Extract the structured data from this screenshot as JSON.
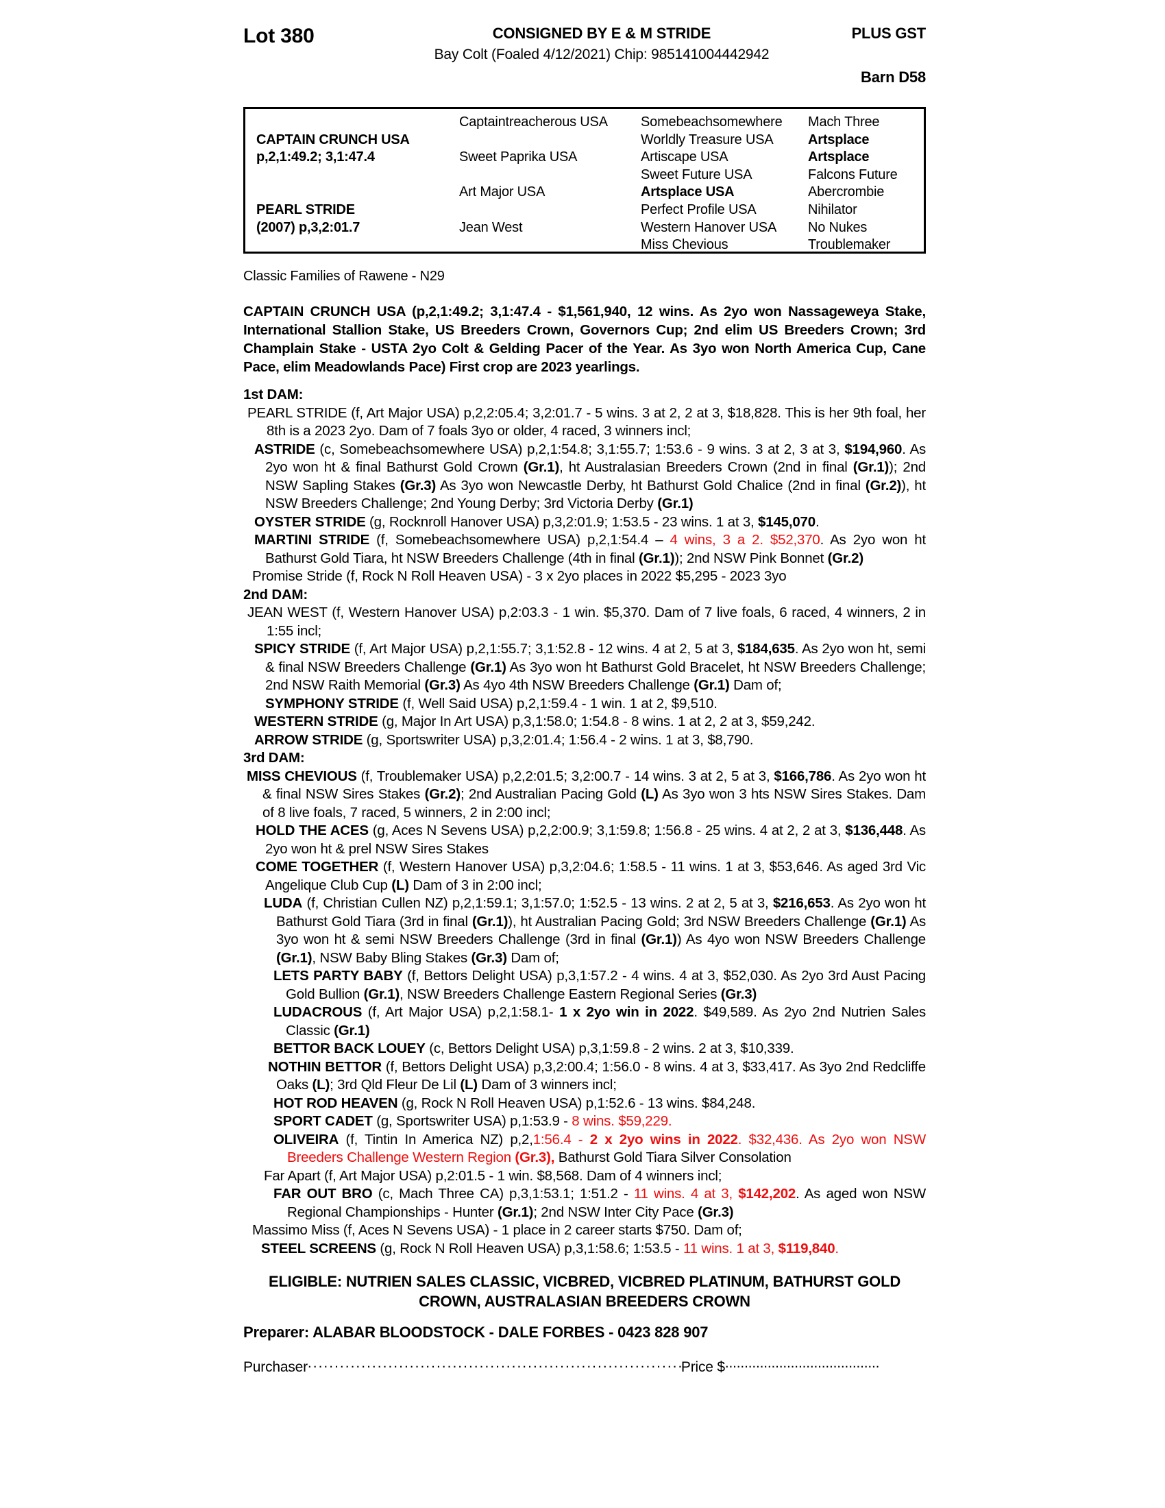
{
  "colors": {
    "red": "#ee0e0e",
    "text": "#000000",
    "background": "#ffffff"
  },
  "header": {
    "lot": "Lot 380",
    "consigned": "CONSIGNED BY E & M STRIDE",
    "plus_gst": "PLUS GST",
    "foal_info": "Bay Colt (Foaled 4/12/2021) Chip: 985141004442942",
    "barn": "Barn D58"
  },
  "pedigree_table": {
    "cells": [
      {
        "c": 1,
        "row": 2,
        "b": true,
        "t": "CAPTAIN CRUNCH USA"
      },
      {
        "c": 1,
        "row": 3,
        "b": true,
        "t": "p,2,1:49.2; 3,1:47.4"
      },
      {
        "c": 1,
        "row": 6,
        "b": true,
        "t": "PEARL STRIDE"
      },
      {
        "c": 1,
        "row": 7,
        "b": true,
        "t": "(2007) p,3,2:01.7"
      },
      {
        "c": 2,
        "row": 1,
        "b": false,
        "t": "Captaintreacherous USA"
      },
      {
        "c": 2,
        "row": 3,
        "b": false,
        "t": "Sweet Paprika USA"
      },
      {
        "c": 2,
        "row": 5,
        "b": false,
        "t": "Art Major USA"
      },
      {
        "c": 2,
        "row": 7,
        "b": false,
        "t": "Jean West"
      },
      {
        "c": 3,
        "row": 1,
        "b": false,
        "t": "Somebeachsomewhere"
      },
      {
        "c": 3,
        "row": 2,
        "b": false,
        "t": "Worldly Treasure USA"
      },
      {
        "c": 3,
        "row": 3,
        "b": false,
        "t": "Artiscape USA"
      },
      {
        "c": 3,
        "row": 4,
        "b": false,
        "t": "Sweet Future USA"
      },
      {
        "c": 3,
        "row": 5,
        "b": true,
        "t": "Artsplace USA"
      },
      {
        "c": 3,
        "row": 6,
        "b": false,
        "t": "Perfect Profile USA"
      },
      {
        "c": 3,
        "row": 7,
        "b": false,
        "t": "Western Hanover USA"
      },
      {
        "c": 3,
        "row": 8,
        "b": false,
        "t": "Miss Chevious"
      },
      {
        "c": 4,
        "row": 1,
        "b": false,
        "t": "Mach Three"
      },
      {
        "c": 4,
        "row": 2,
        "b": true,
        "t": "Artsplace"
      },
      {
        "c": 4,
        "row": 3,
        "b": true,
        "t": "Artsplace"
      },
      {
        "c": 4,
        "row": 4,
        "b": false,
        "t": "Falcons Future"
      },
      {
        "c": 4,
        "row": 5,
        "b": false,
        "t": "Abercrombie"
      },
      {
        "c": 4,
        "row": 6,
        "b": false,
        "t": "Nihilator"
      },
      {
        "c": 4,
        "row": 7,
        "b": false,
        "t": "No Nukes"
      },
      {
        "c": 4,
        "row": 8,
        "b": false,
        "t": "Troublemaker"
      }
    ]
  },
  "family_line": "Classic Families of Rawene - N29",
  "sire_paragraph": "CAPTAIN CRUNCH USA (p,2,1:49.2; 3,1:47.4 - $1,561,940, 12 wins. As 2yo won Nassageweya Stake, International Stallion Stake, US Breeders Crown, Governors Cup; 2nd elim US Breeders Crown; 3rd Champlain Stake - USTA 2yo Colt & Gelding Pacer of the Year. As 3yo won North America Cup, Cane Pace, elim Meadowlands Pace) First crop are 2023 yearlings.",
  "pedigree_entries": [
    {
      "h": "1st DAM:",
      "gap": true
    },
    {
      "first": 6,
      "cont": 34,
      "runs": [
        {
          "t": "PEARL STRIDE (f, Art Major USA) p,2,2:05.4; 3,2:01.7 - 5 wins. 3 at 2, 2 at 3, $18,828. This is her 9th foal, her 8th is a 2023 2yo. Dam of 7 foals 3yo or older, 4 raced, 3 winners incl;"
        }
      ]
    },
    {
      "first": 16,
      "cont": 32,
      "runs": [
        {
          "t": "ASTRIDE",
          "b": true
        },
        {
          "t": " (c, Somebeachsomewhere USA) p,2,1:54.8; 3,1:55.7; 1:53.6 - 9 wins. 3 at 2, 3 at 3, "
        },
        {
          "t": "$194,960",
          "b": true
        },
        {
          "t": ". As 2yo won ht & final Bathurst Gold Crown "
        },
        {
          "t": "(Gr.1)",
          "b": true
        },
        {
          "t": ", ht Australasian Breeders Crown (2nd in final "
        },
        {
          "t": "(Gr.1)",
          "b": true
        },
        {
          "t": "); 2nd NSW Sapling Stakes "
        },
        {
          "t": "(Gr.3)",
          "b": true
        },
        {
          "t": " As 3yo won Newcastle Derby, ht Bathurst Gold Chalice (2nd in final "
        },
        {
          "t": "(Gr.2)",
          "b": true
        },
        {
          "t": "), ht NSW Breeders Challenge; 2nd Young Derby; 3rd Victoria Derby "
        },
        {
          "t": "(Gr.1)",
          "b": true
        }
      ]
    },
    {
      "first": 16,
      "cont": 32,
      "runs": [
        {
          "t": "OYSTER STRIDE",
          "b": true
        },
        {
          "t": " (g, Rocknroll Hanover USA) p,3,2:01.9; 1:53.5 - 23 wins. 1 at 3, "
        },
        {
          "t": "$145,070",
          "b": true
        },
        {
          "t": "."
        }
      ]
    },
    {
      "first": 16,
      "cont": 32,
      "runs": [
        {
          "t": "MARTINI STRIDE",
          "b": true
        },
        {
          "t": " (f, Somebeachsomewhere USA) p,2,1:54.4 – "
        },
        {
          "t": "4 wins, 3 a 2. $52,370",
          "r": true
        },
        {
          "t": ". As 2yo won ht Bathurst Gold Tiara, ht NSW Breeders Challenge (4th in final "
        },
        {
          "t": "(Gr.1)",
          "b": true
        },
        {
          "t": "); 2nd NSW Pink Bonnet "
        },
        {
          "t": "(Gr.2)",
          "b": true
        }
      ]
    },
    {
      "first": 13,
      "cont": 30,
      "runs": [
        {
          "t": "Promise Stride (f, Rock N Roll Heaven USA) - 3 x 2yo places in 2022 $5,295 - 2023 3yo"
        }
      ]
    },
    {
      "h": "2nd DAM:"
    },
    {
      "first": 6,
      "cont": 34,
      "runs": [
        {
          "t": "JEAN WEST (f, Western Hanover USA) p,2:03.3 - 1 win. $5,370. Dam of 7 live foals, 6 raced, 4 winners, 2 in 1:55 incl;"
        }
      ]
    },
    {
      "first": 16,
      "cont": 32,
      "runs": [
        {
          "t": "SPICY STRIDE",
          "b": true
        },
        {
          "t": " (f, Art Major USA) p,2,1:55.7; 3,1:52.8 - 12 wins. 4 at 2, 5 at 3, "
        },
        {
          "t": "$184,635",
          "b": true
        },
        {
          "t": ". As 2yo won ht, semi & final NSW Breeders Challenge "
        },
        {
          "t": "(Gr.1)",
          "b": true
        },
        {
          "t": " As 3yo won ht Bathurst Gold Bracelet, ht NSW Breeders Challenge; 2nd NSW Raith Memorial "
        },
        {
          "t": "(Gr.3)",
          "b": true
        },
        {
          "t": " As 4yo 4th NSW Breeders Challenge "
        },
        {
          "t": "(Gr.1)",
          "b": true
        },
        {
          "t": " Dam of;"
        }
      ]
    },
    {
      "first": 32,
      "cont": 48,
      "runs": [
        {
          "t": "SYMPHONY STRIDE",
          "b": true
        },
        {
          "t": " (f, Well Said USA) p,2,1:59.4 - 1 win. 1 at 2, $9,510."
        }
      ]
    },
    {
      "first": 16,
      "cont": 32,
      "runs": [
        {
          "t": "WESTERN STRIDE",
          "b": true
        },
        {
          "t": " (g, Major In Art USA) p,3,1:58.0; 1:54.8 - 8 wins. 1 at 2, 2 at 3, $59,242."
        }
      ]
    },
    {
      "first": 16,
      "cont": 32,
      "runs": [
        {
          "t": "ARROW STRIDE",
          "b": true
        },
        {
          "t": " (g, Sportswriter USA) p,3,2:01.4; 1:56.4 - 2 wins. 1 at 3, $8,790."
        }
      ]
    },
    {
      "h": "3rd DAM:"
    },
    {
      "first": 5,
      "cont": 28,
      "runs": [
        {
          "t": "MISS CHEVIOUS",
          "b": true
        },
        {
          "t": " (f, Troublemaker USA) p,2,2:01.5; 3,2:00.7 - 14 wins. 3 at 2, 5 at 3, "
        },
        {
          "t": "$166,786",
          "b": true
        },
        {
          "t": ". As 2yo won ht & final NSW Sires Stakes "
        },
        {
          "t": "(Gr.2)",
          "b": true
        },
        {
          "t": "; 2nd Australian Pacing Gold "
        },
        {
          "t": "(L)",
          "b": true
        },
        {
          "t": " As 3yo won 3 hts NSW Sires Stakes. Dam of 8 live foals, 7 raced, 5 winners, 2 in 2:00 incl;"
        }
      ]
    },
    {
      "first": 18,
      "cont": 32,
      "runs": [
        {
          "t": "HOLD THE ACES",
          "b": true
        },
        {
          "t": " (g, Aces N Sevens USA) p,2,2:00.9; 3,1:59.8; 1:56.8 - 25 wins. 4 at 2, 2 at 3, "
        },
        {
          "t": "$136,448",
          "b": true
        },
        {
          "t": ". As 2yo won ht & prel NSW Sires Stakes"
        }
      ]
    },
    {
      "first": 18,
      "cont": 32,
      "runs": [
        {
          "t": "COME TOGETHER",
          "b": true
        },
        {
          "t": " (f, Western Hanover USA) p,3,2:04.6; 1:58.5 - 11 wins. 1 at 3, $53,646. As aged 3rd Vic Angelique Club Cup "
        },
        {
          "t": "(L)",
          "b": true
        },
        {
          "t": " Dam of 3 in 2:00 incl;"
        }
      ]
    },
    {
      "first": 30,
      "cont": 48,
      "runs": [
        {
          "t": "LUDA",
          "b": true
        },
        {
          "t": " (f, Christian Cullen NZ) p,2,1:59.1; 3,1:57.0; 1:52.5 - 13 wins. 2 at 2, 5 at 3, "
        },
        {
          "t": "$216,653",
          "b": true
        },
        {
          "t": ". As 2yo won ht Bathurst Gold Tiara (3rd in final "
        },
        {
          "t": "(Gr.1)",
          "b": true
        },
        {
          "t": "), ht Australian Pacing Gold; 3rd NSW Breeders Challenge "
        },
        {
          "t": "(Gr.1)",
          "b": true
        },
        {
          "t": " As 3yo won ht & semi NSW Breeders Challenge (3rd in final "
        },
        {
          "t": "(Gr.1)",
          "b": true
        },
        {
          "t": ") As 4yo won NSW Breeders Challenge "
        },
        {
          "t": "(Gr.1)",
          "b": true
        },
        {
          "t": ", NSW Baby Bling Stakes "
        },
        {
          "t": "(Gr.3)",
          "b": true
        },
        {
          "t": " Dam of;"
        }
      ]
    },
    {
      "first": 44,
      "cont": 62,
      "runs": [
        {
          "t": "LETS PARTY BABY",
          "b": true
        },
        {
          "t": " (f, Bettors Delight USA) p,3,1:57.2 - 4 wins. 4 at 3, $52,030. As 2yo 3rd Aust Pacing Gold Bullion "
        },
        {
          "t": "(Gr.1)",
          "b": true
        },
        {
          "t": ", NSW Breeders Challenge Eastern Regional Series "
        },
        {
          "t": "(Gr.3)",
          "b": true
        }
      ]
    },
    {
      "first": 44,
      "cont": 62,
      "runs": [
        {
          "t": "LUDACROUS",
          "b": true
        },
        {
          "t": " (f, Art Major USA) p,2,1:58.1- "
        },
        {
          "t": "1 x 2yo win in 2022",
          "b": true
        },
        {
          "t": ". $49,589. As 2yo 2nd Nutrien Sales Classic "
        },
        {
          "t": "(Gr.1)",
          "b": true
        }
      ]
    },
    {
      "first": 44,
      "cont": 62,
      "runs": [
        {
          "t": "BETTOR BACK LOUEY",
          "b": true
        },
        {
          "t": " (c, Bettors Delight USA) p,3,1:59.8 - 2 wins. 2 at 3, $10,339."
        }
      ]
    },
    {
      "first": 36,
      "cont": 48,
      "runs": [
        {
          "t": "NOTHIN BETTOR",
          "b": true
        },
        {
          "t": " (f, Bettors Delight USA) p,3,2:00.4; 1:56.0 - 8 wins. 4 at 3, $33,417. As 3yo 2nd Redcliffe Oaks "
        },
        {
          "t": "(L)",
          "b": true
        },
        {
          "t": "; 3rd Qld Fleur De Lil "
        },
        {
          "t": "(L)",
          "b": true
        },
        {
          "t": " Dam of 3 winners incl;"
        }
      ]
    },
    {
      "first": 44,
      "cont": 62,
      "runs": [
        {
          "t": "HOT ROD HEAVEN",
          "b": true
        },
        {
          "t": " (g, Rock N Roll Heaven USA) p,1:52.6 - 13 wins. $84,248."
        }
      ]
    },
    {
      "first": 44,
      "cont": 62,
      "runs": [
        {
          "t": "SPORT CADET",
          "b": true
        },
        {
          "t": " (g, Sportswriter USA) p,1:53.9 - "
        },
        {
          "t": "8 wins. $59,229.",
          "r": true
        }
      ]
    },
    {
      "first": 44,
      "cont": 64,
      "runs": [
        {
          "t": "OLIVEIRA",
          "b": true
        },
        {
          "t": " (f, Tintin In America NZ) p,2,"
        },
        {
          "t": "1:56.4 - ",
          "r": true
        },
        {
          "t": "2 x 2yo wins in 2022",
          "b": true,
          "r": true
        },
        {
          "t": ". $32,436. As 2yo won NSW Breeders Challenge Western Region ",
          "r": true
        },
        {
          "t": "(Gr.3),",
          "b": true,
          "r": true
        },
        {
          "t": " Bathurst Gold Tiara Silver Consolation"
        }
      ]
    },
    {
      "first": 30,
      "cont": 48,
      "runs": [
        {
          "t": "Far Apart (f, Art Major USA) p,2:01.5 - 1 win. $8,568. Dam of 4 winners incl;"
        }
      ]
    },
    {
      "first": 44,
      "cont": 64,
      "runs": [
        {
          "t": "FAR OUT BRO",
          "b": true
        },
        {
          "t": " (c, Mach Three CA) p,3,1:53.1; 1:51.2 - "
        },
        {
          "t": "11 wins. 4 at 3, ",
          "r": true
        },
        {
          "t": "$142,202",
          "b": true,
          "r": true
        },
        {
          "t": ". As aged won NSW Regional Championships - Hunter "
        },
        {
          "t": "(Gr.1)",
          "b": true
        },
        {
          "t": "; 2nd NSW Inter City Pace "
        },
        {
          "t": "(Gr.3)",
          "b": true
        }
      ]
    },
    {
      "first": 13,
      "cont": 30,
      "runs": [
        {
          "t": "Massimo Miss (f, Aces N Sevens USA) - 1 place in 2 career starts $750. Dam of;"
        }
      ]
    },
    {
      "first": 26,
      "cont": 44,
      "runs": [
        {
          "t": "STEEL SCREENS",
          "b": true
        },
        {
          "t": " (g, Rock N Roll Heaven USA) p,3,1:58.6; 1:53.5 - "
        },
        {
          "t": "11 wins. 1 at 3, ",
          "r": true
        },
        {
          "t": "$119,840",
          "b": true,
          "r": true
        },
        {
          "t": ".",
          "r": true
        }
      ]
    }
  ],
  "footer": {
    "eligible": "ELIGIBLE: NUTRIEN SALES CLASSIC, VICBRED, VICBRED PLATINUM, BATHURST GOLD CROWN, AUSTRALASIAN BREEDERS CROWN",
    "preparer": "Preparer: ALABAR BLOODSTOCK - DALE FORBES - 0423 828 907",
    "purchaser_label": "Purchaser",
    "purchaser_dots": "................................................................................................................................................",
    "price_label": "Price $",
    "price_dots": "................................................................................................................................................"
  }
}
